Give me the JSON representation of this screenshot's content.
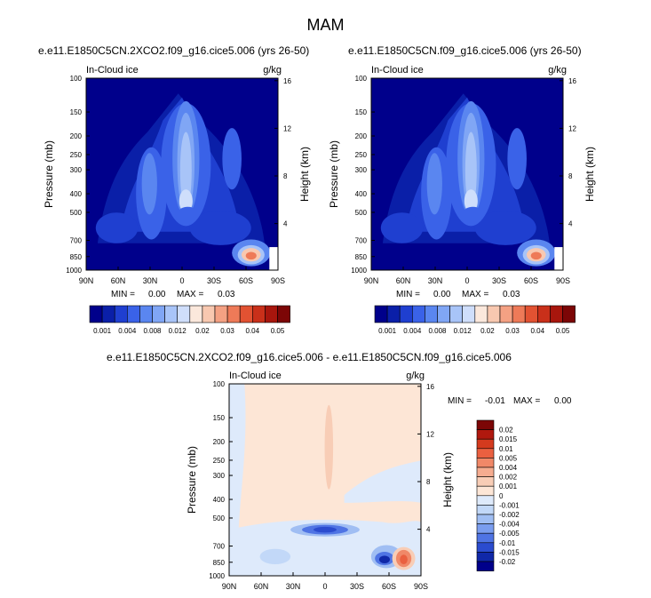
{
  "figure_title": "MAM",
  "chart_data": [
    {
      "type": "heatmap",
      "panel": "top-left",
      "case_title": "e.e11.E1850C5CN.2XCO2.f09_g16.cice5.006 (yrs 26-50)",
      "variable_label": "In-Cloud ice",
      "units": "g/kg",
      "xlabel": "",
      "ylabel": "Pressure (mb)",
      "y2label": "Height (km)",
      "x_ticks": [
        "90N",
        "60N",
        "30N",
        "0",
        "30S",
        "60S",
        "90S"
      ],
      "pressure_ticks": [
        "100",
        "150",
        "200",
        "250",
        "300",
        "400",
        "500",
        "700",
        "850",
        "1000"
      ],
      "height_ticks": [
        "16",
        "12",
        "8",
        "4"
      ],
      "stats_text": {
        "min_label": "MIN =",
        "min": "0.00",
        "max_label": "MAX =",
        "max": "0.03"
      },
      "colorbar_labels": [
        "0.001",
        "0.004",
        "0.008",
        "0.012",
        "0.02",
        "0.03",
        "0.04",
        "0.05"
      ]
    },
    {
      "type": "heatmap",
      "panel": "top-right",
      "case_title": "e.e11.E1850C5CN.f09_g16.cice5.006 (yrs 26-50)",
      "variable_label": "In-Cloud ice",
      "units": "g/kg",
      "xlabel": "",
      "ylabel": "Pressure (mb)",
      "y2label": "Height (km)",
      "x_ticks": [
        "90N",
        "60N",
        "30N",
        "0",
        "30S",
        "60S",
        "90S"
      ],
      "pressure_ticks": [
        "100",
        "150",
        "200",
        "250",
        "300",
        "400",
        "500",
        "700",
        "850",
        "1000"
      ],
      "height_ticks": [
        "16",
        "12",
        "8",
        "4"
      ],
      "stats_text": {
        "min_label": "MIN =",
        "min": "0.00",
        "max_label": "MAX =",
        "max": "0.03"
      },
      "colorbar_labels": [
        "0.001",
        "0.004",
        "0.008",
        "0.012",
        "0.02",
        "0.03",
        "0.04",
        "0.05"
      ]
    },
    {
      "type": "heatmap",
      "panel": "bottom-difference",
      "case_title": "e.e11.E1850C5CN.2XCO2.f09_g16.cice5.006 - e.e11.E1850C5CN.f09_g16.cice5.006",
      "variable_label": "In-Cloud ice",
      "units": "g/kg",
      "xlabel": "",
      "ylabel": "Pressure (mb)",
      "y2label": "Height (km)",
      "x_ticks": [
        "90N",
        "60N",
        "30N",
        "0",
        "30S",
        "60S",
        "90S"
      ],
      "pressure_ticks": [
        "100",
        "150",
        "200",
        "250",
        "300",
        "400",
        "500",
        "700",
        "850",
        "1000"
      ],
      "height_ticks": [
        "16",
        "12",
        "8",
        "4"
      ],
      "stats_text": {
        "min_label": "MIN =",
        "min": "-0.01",
        "max_label": "MAX =",
        "max": "0.00"
      },
      "colorbar_labels": [
        "0.02",
        "0.015",
        "0.01",
        "0.005",
        "0.004",
        "0.002",
        "0.001",
        "0",
        "-0.001",
        "-0.002",
        "-0.004",
        "-0.005",
        "-0.01",
        "-0.015",
        "-0.02"
      ]
    }
  ],
  "palettes": {
    "abs": [
      "#00008b",
      "#0a1fa8",
      "#1f3fd0",
      "#3a62e8",
      "#5a86f0",
      "#80a6f5",
      "#a8c4f8",
      "#cfdefb",
      "#fbe8dc",
      "#f8c8b0",
      "#f4a183",
      "#ee7a58",
      "#e25232",
      "#c9301a",
      "#a8160d",
      "#7c0606"
    ],
    "diff": [
      "#7c0606",
      "#b0180e",
      "#d43a1e",
      "#ea6040",
      "#f08868",
      "#f5ac90",
      "#f8cdb6",
      "#fde6d6",
      "#deeafb",
      "#c2d8f8",
      "#a0bef3",
      "#7a9def",
      "#4f74e4",
      "#2b4ccf",
      "#1028a8",
      "#00008b"
    ]
  }
}
